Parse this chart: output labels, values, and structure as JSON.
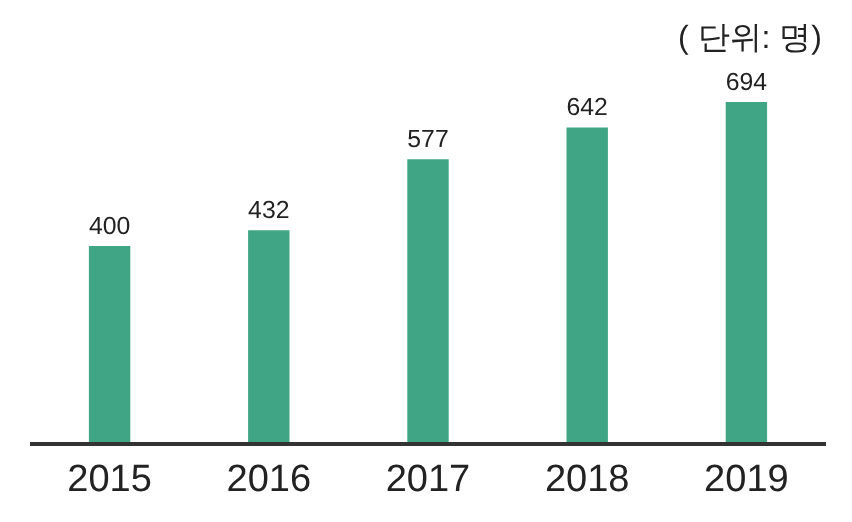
{
  "chart_data": {
    "type": "bar",
    "categories": [
      "2015",
      "2016",
      "2017",
      "2018",
      "2019"
    ],
    "values": [
      400,
      432,
      577,
      642,
      694
    ],
    "color": "#3fa584",
    "data_labels": true,
    "annotations": [
      "( 단위: 명)"
    ]
  }
}
